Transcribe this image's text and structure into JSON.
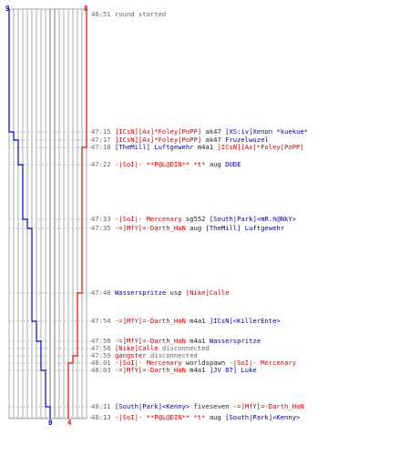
{
  "teams": {
    "blue": {
      "color": "#0000cc",
      "start_score": "9",
      "end_score": "0"
    },
    "red": {
      "color": "#ee0000",
      "start_score": "8",
      "end_score": "4"
    }
  },
  "events": [
    {
      "time": "46:51",
      "parts": [
        {
          "text": "round started",
          "c": "gray"
        }
      ]
    },
    {
      "time": "47:15",
      "parts": [
        {
          "text": "]ICsN][Ax]*Foley[PoPP]",
          "c": "red"
        },
        {
          "text": " ak47 ",
          "c": "dark"
        },
        {
          "text": "[XS:iv]Xenon *kuekue*",
          "c": "blue"
        }
      ]
    },
    {
      "time": "47:17",
      "parts": [
        {
          "text": "]ICsN][Ax]*Foley[PoPP]",
          "c": "red"
        },
        {
          "text": " ak47 ",
          "c": "dark"
        },
        {
          "text": "Fruzelwuzel",
          "c": "blue"
        }
      ]
    },
    {
      "time": "47:18",
      "parts": [
        {
          "text": "[TheMill] Luftgewehr",
          "c": "blue"
        },
        {
          "text": " m4a1 ",
          "c": "dark"
        },
        {
          "text": "]ICsN][Ax]*Foley[PoPP]",
          "c": "red"
        }
      ]
    },
    {
      "time": "47:22",
      "parts": [
        {
          "text": "-|SoI|- **P@L@DIN** *t*",
          "c": "red"
        },
        {
          "text": " aug ",
          "c": "dark"
        },
        {
          "text": "DUDE",
          "c": "blue"
        }
      ]
    },
    {
      "time": "47:33",
      "parts": [
        {
          "text": "-|SoI|- Mercenary",
          "c": "red"
        },
        {
          "text": " sg552 ",
          "c": "dark"
        },
        {
          "text": "[South|Park]<mR.h@NkY>",
          "c": "blue"
        }
      ]
    },
    {
      "time": "47:35",
      "parts": [
        {
          "text": "-=]MfY[=-Darth_HaN",
          "c": "red"
        },
        {
          "text": " aug ",
          "c": "dark"
        },
        {
          "text": "[TheMill] Luftgewehr",
          "c": "blue"
        }
      ]
    },
    {
      "time": "47:48",
      "parts": [
        {
          "text": "Wasserspritze",
          "c": "blue"
        },
        {
          "text": " usp ",
          "c": "dark"
        },
        {
          "text": "[Nike]Calle",
          "c": "red"
        }
      ]
    },
    {
      "time": "47:54",
      "parts": [
        {
          "text": "-=]MfY[=-Darth_HaN",
          "c": "red"
        },
        {
          "text": " m4a1 ",
          "c": "dark"
        },
        {
          "text": "]ICsN]<KillerEnte>",
          "c": "blue"
        }
      ]
    },
    {
      "time": "47:58",
      "parts": [
        {
          "text": "-=]MfY[=-Darth_HaN",
          "c": "red"
        },
        {
          "text": " m4a1 ",
          "c": "dark"
        },
        {
          "text": "Wasserspritze",
          "c": "blue"
        }
      ]
    },
    {
      "time": "47:58",
      "parts": [
        {
          "text": "[Nike]Calle",
          "c": "red"
        },
        {
          "text": " disconnected",
          "c": "gray"
        }
      ]
    },
    {
      "time": "47:59",
      "parts": [
        {
          "text": "gangster",
          "c": "red"
        },
        {
          "text": " disconnected",
          "c": "gray"
        }
      ]
    },
    {
      "time": "48:01",
      "parts": [
        {
          "text": "-|SoI|- Mercenary",
          "c": "red"
        },
        {
          "text": " worldspawn ",
          "c": "dark"
        },
        {
          "text": "-|SoI|- Mercenary",
          "c": "red"
        }
      ]
    },
    {
      "time": "48:03",
      "parts": [
        {
          "text": "-=]MfY[=-Darth_HaN",
          "c": "red"
        },
        {
          "text": " m4a1 ",
          "c": "dark"
        },
        {
          "text": "]JV 07] Luke",
          "c": "blue"
        }
      ]
    },
    {
      "time": "48:11",
      "parts": [
        {
          "text": "[South|Park]<Kenny>",
          "c": "blue"
        },
        {
          "text": " fiveseven ",
          "c": "dark"
        },
        {
          "text": "-=]MfY[=-Darth_HaN",
          "c": "red"
        }
      ]
    },
    {
      "time": "48:13",
      "parts": [
        {
          "text": "-|SoI|- **P@L@DIN** *t*",
          "c": "red"
        },
        {
          "text": " aug ",
          "c": "dark"
        },
        {
          "text": "[South|Park]<Kenny>",
          "c": "blue"
        }
      ]
    }
  ]
}
